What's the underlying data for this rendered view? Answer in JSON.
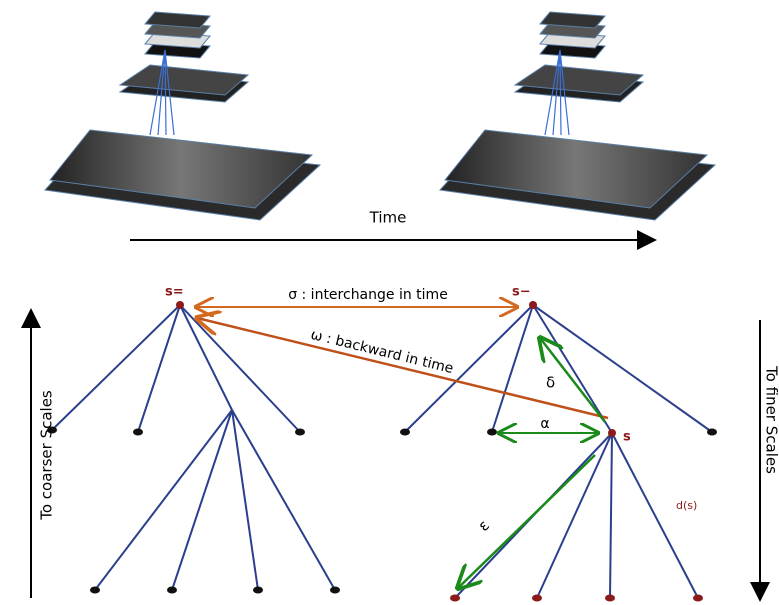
{
  "time_axis": {
    "label": "Time"
  },
  "tree_past": {
    "root_label": "s="
  },
  "tree_present": {
    "root_label": "s−",
    "node_label": "s",
    "children_label": "d(s)"
  },
  "relations": {
    "sigma": "σ : interchange in time",
    "omega": "ω : backward in time",
    "delta": "δ",
    "alpha": "α",
    "epsilon": "ε"
  },
  "scale_axes": {
    "coarser": "To coarser  Scales",
    "finer": "To finer Scales"
  }
}
